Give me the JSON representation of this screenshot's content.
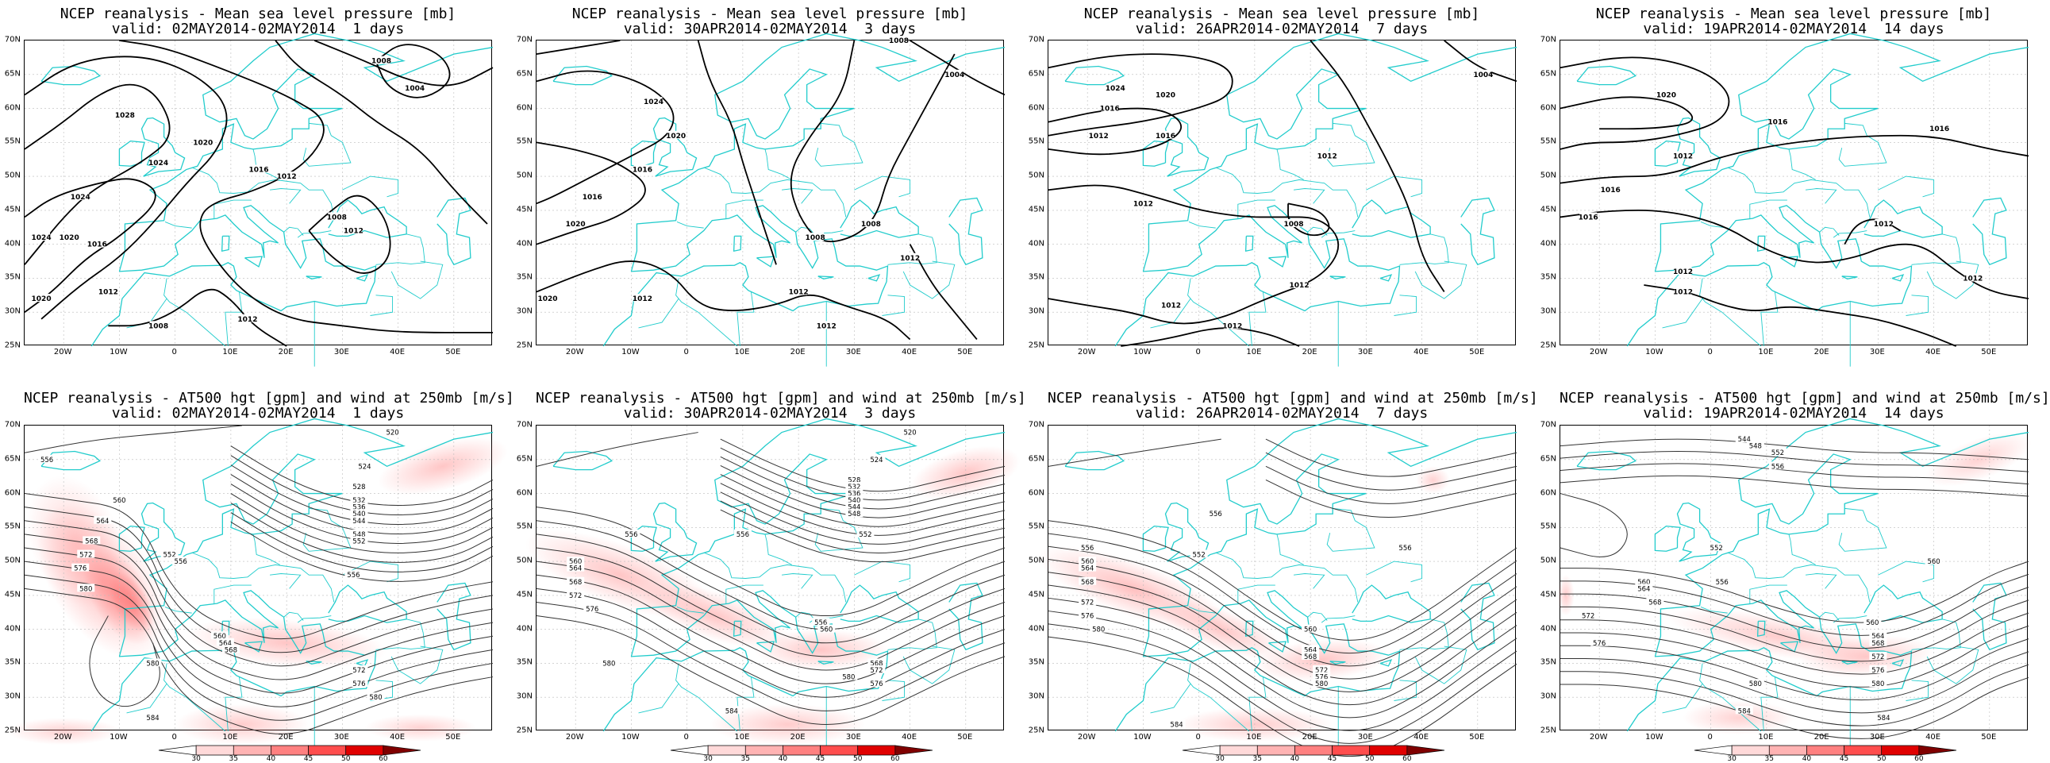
{
  "figure": {
    "mslp_panels": [
      {
        "line1": "NCEP reanalysis - Mean sea level pressure [mb]",
        "line2": "valid: 02MAY2014-02MAY2014  1 days"
      },
      {
        "line1": "NCEP reanalysis - Mean sea level pressure [mb]",
        "line2": "valid: 30APR2014-02MAY2014  3 days"
      },
      {
        "line1": "NCEP reanalysis - Mean sea level pressure [mb]",
        "line2": "valid: 26APR2014-02MAY2014  7 days"
      },
      {
        "line1": "NCEP reanalysis - Mean sea level pressure [mb]",
        "line2": "valid: 19APR2014-02MAY2014  14 days"
      }
    ],
    "z500_panels": [
      {
        "line1": "NCEP reanalysis - AT500 hgt [gpm] and wind at 250mb [m/s]",
        "line2": "valid: 02MAY2014-02MAY2014  1 days"
      },
      {
        "line1": "NCEP reanalysis - AT500 hgt [gpm] and wind at 250mb [m/s]",
        "line2": "valid: 30APR2014-02MAY2014  3 days"
      },
      {
        "line1": "NCEP reanalysis - AT500 hgt [gpm] and wind at 250mb [m/s]",
        "line2": "valid: 26APR2014-02MAY2014  7 days"
      },
      {
        "line1": "NCEP reanalysis - AT500 hgt [gpm] and wind at 250mb [m/s]",
        "line2": "valid: 19APR2014-02MAY2014  14 days"
      }
    ],
    "lat_labels": [
      "70N",
      "65N",
      "60N",
      "55N",
      "50N",
      "45N",
      "40N",
      "35N",
      "30N",
      "25N"
    ],
    "lon_labels": [
      "20W",
      "10W",
      "0",
      "10E",
      "20E",
      "30E",
      "40E",
      "50E"
    ],
    "colorbar": {
      "labels": [
        "30",
        "35",
        "40",
        "45",
        "50",
        "60"
      ],
      "colors": [
        "#ffffff",
        "#ffd9d9",
        "#ffb3b3",
        "#ff8080",
        "#ff4d4d",
        "#e00000",
        "#800000"
      ]
    },
    "colors": {
      "coast": "#22cccc",
      "contour": "#000000",
      "jet": "#ff8080"
    },
    "mslp_contours": [
      [
        {
          "label": "1024",
          "lon": -17,
          "lat": 47
        },
        {
          "label": "1024",
          "lon": -24,
          "lat": 41
        },
        {
          "label": "1020",
          "lon": -19,
          "lat": 41
        },
        {
          "label": "1020",
          "lon": -24,
          "lat": 32
        },
        {
          "label": "1016",
          "lon": -14,
          "lat": 40
        },
        {
          "label": "1012",
          "lon": -12,
          "lat": 33
        },
        {
          "label": "1008",
          "lon": -3,
          "lat": 28
        },
        {
          "label": "1012",
          "lon": 13,
          "lat": 29
        },
        {
          "label": "1012",
          "lon": 32,
          "lat": 42
        },
        {
          "label": "1012",
          "lon": 20,
          "lat": 50
        },
        {
          "label": "1016",
          "lon": 15,
          "lat": 51
        },
        {
          "label": "1020",
          "lon": 5,
          "lat": 55
        },
        {
          "label": "1028",
          "lon": -9,
          "lat": 59
        },
        {
          "label": "1024",
          "lon": -3,
          "lat": 52
        },
        {
          "label": "1008",
          "lon": 29,
          "lat": 44
        },
        {
          "label": "1008",
          "lon": 37,
          "lat": 67
        },
        {
          "label": "1004",
          "lon": 43,
          "lat": 63
        }
      ],
      [
        {
          "label": "1024",
          "lon": -6,
          "lat": 61
        },
        {
          "label": "1020",
          "lon": -2,
          "lat": 56
        },
        {
          "label": "1016",
          "lon": -8,
          "lat": 51
        },
        {
          "label": "1016",
          "lon": -17,
          "lat": 47
        },
        {
          "label": "1020",
          "lon": -20,
          "lat": 43
        },
        {
          "label": "1020",
          "lon": -25,
          "lat": 32
        },
        {
          "label": "1012",
          "lon": -8,
          "lat": 32
        },
        {
          "label": "1012",
          "lon": 20,
          "lat": 33
        },
        {
          "label": "1012",
          "lon": 25,
          "lat": 28
        },
        {
          "label": "1012",
          "lon": 40,
          "lat": 38
        },
        {
          "label": "1008",
          "lon": 23,
          "lat": 41
        },
        {
          "label": "1008",
          "lon": 33,
          "lat": 43
        },
        {
          "label": "1008",
          "lon": 38,
          "lat": 70
        },
        {
          "label": "1004",
          "lon": 48,
          "lat": 65
        }
      ],
      [
        {
          "label": "1024",
          "lon": -15,
          "lat": 63
        },
        {
          "label": "1020",
          "lon": -6,
          "lat": 62
        },
        {
          "label": "1016",
          "lon": -16,
          "lat": 60
        },
        {
          "label": "1012",
          "lon": -18,
          "lat": 56
        },
        {
          "label": "1016",
          "lon": -6,
          "lat": 56
        },
        {
          "label": "1012",
          "lon": 23,
          "lat": 53
        },
        {
          "label": "1012",
          "lon": -10,
          "lat": 46
        },
        {
          "label": "1008",
          "lon": 17,
          "lat": 43
        },
        {
          "label": "1012",
          "lon": 18,
          "lat": 34
        },
        {
          "label": "1012",
          "lon": -5,
          "lat": 31
        },
        {
          "label": "1012",
          "lon": 6,
          "lat": 28
        },
        {
          "label": "1004",
          "lon": 51,
          "lat": 65
        }
      ],
      [
        {
          "label": "1020",
          "lon": -8,
          "lat": 62
        },
        {
          "label": "1016",
          "lon": 12,
          "lat": 58
        },
        {
          "label": "1016",
          "lon": 41,
          "lat": 57
        },
        {
          "label": "1012",
          "lon": -5,
          "lat": 53
        },
        {
          "label": "1016",
          "lon": -18,
          "lat": 48
        },
        {
          "label": "1016",
          "lon": -22,
          "lat": 44
        },
        {
          "label": "1012",
          "lon": -5,
          "lat": 36
        },
        {
          "label": "1012",
          "lon": -5,
          "lat": 33
        },
        {
          "label": "1012",
          "lon": 31,
          "lat": 43
        },
        {
          "label": "1012",
          "lon": 47,
          "lat": 35
        }
      ]
    ],
    "z500_contours": [
      [
        {
          "label": "520",
          "lon": 39,
          "lat": 69
        },
        {
          "label": "524",
          "lon": 34,
          "lat": 64
        },
        {
          "label": "528",
          "lon": 33,
          "lat": 61
        },
        {
          "label": "532",
          "lon": 33,
          "lat": 59
        },
        {
          "label": "536",
          "lon": 33,
          "lat": 58
        },
        {
          "label": "540",
          "lon": 33,
          "lat": 57
        },
        {
          "label": "544",
          "lon": 33,
          "lat": 56
        },
        {
          "label": "548",
          "lon": 33,
          "lat": 54
        },
        {
          "label": "552",
          "lon": 33,
          "lat": 53
        },
        {
          "label": "556",
          "lon": -23,
          "lat": 65
        },
        {
          "label": "556",
          "lon": 32,
          "lat": 48
        },
        {
          "label": "552",
          "lon": -1,
          "lat": 51
        },
        {
          "label": "556",
          "lon": 1,
          "lat": 50
        },
        {
          "label": "560",
          "lon": -10,
          "lat": 59
        },
        {
          "label": "564",
          "lon": -13,
          "lat": 56
        },
        {
          "label": "568",
          "lon": -15,
          "lat": 53
        },
        {
          "label": "572",
          "lon": -16,
          "lat": 51
        },
        {
          "label": "576",
          "lon": -17,
          "lat": 49
        },
        {
          "label": "580",
          "lon": -16,
          "lat": 46
        },
        {
          "label": "560",
          "lon": 8,
          "lat": 39
        },
        {
          "label": "564",
          "lon": 9,
          "lat": 38
        },
        {
          "label": "568",
          "lon": 10,
          "lat": 37
        },
        {
          "label": "572",
          "lon": 33,
          "lat": 34
        },
        {
          "label": "576",
          "lon": 33,
          "lat": 32
        },
        {
          "label": "580",
          "lon": -4,
          "lat": 35
        },
        {
          "label": "580",
          "lon": 36,
          "lat": 30
        },
        {
          "label": "584",
          "lon": -4,
          "lat": 27
        }
      ],
      [
        {
          "label": "520",
          "lon": 40,
          "lat": 69
        },
        {
          "label": "524",
          "lon": 34,
          "lat": 65
        },
        {
          "label": "528",
          "lon": 30,
          "lat": 62
        },
        {
          "label": "532",
          "lon": 30,
          "lat": 61
        },
        {
          "label": "536",
          "lon": 30,
          "lat": 60
        },
        {
          "label": "540",
          "lon": 30,
          "lat": 59
        },
        {
          "label": "544",
          "lon": 30,
          "lat": 58
        },
        {
          "label": "548",
          "lon": 30,
          "lat": 57
        },
        {
          "label": "552",
          "lon": 32,
          "lat": 54
        },
        {
          "label": "556",
          "lon": -10,
          "lat": 54
        },
        {
          "label": "556",
          "lon": 10,
          "lat": 54
        },
        {
          "label": "560",
          "lon": -20,
          "lat": 50
        },
        {
          "label": "564",
          "lon": -20,
          "lat": 49
        },
        {
          "label": "568",
          "lon": -20,
          "lat": 47
        },
        {
          "label": "572",
          "lon": -20,
          "lat": 45
        },
        {
          "label": "576",
          "lon": -17,
          "lat": 43
        },
        {
          "label": "556",
          "lon": 24,
          "lat": 41
        },
        {
          "label": "560",
          "lon": 25,
          "lat": 40
        },
        {
          "label": "568",
          "lon": 34,
          "lat": 35
        },
        {
          "label": "572",
          "lon": 34,
          "lat": 34
        },
        {
          "label": "576",
          "lon": 34,
          "lat": 32
        },
        {
          "label": "580",
          "lon": -14,
          "lat": 35
        },
        {
          "label": "580",
          "lon": 29,
          "lat": 33
        },
        {
          "label": "584",
          "lon": 8,
          "lat": 28
        }
      ],
      [
        {
          "label": "556",
          "lon": 3,
          "lat": 57
        },
        {
          "label": "552",
          "lon": 0,
          "lat": 51
        },
        {
          "label": "556",
          "lon": 37,
          "lat": 52
        },
        {
          "label": "556",
          "lon": -20,
          "lat": 52
        },
        {
          "label": "560",
          "lon": -20,
          "lat": 50
        },
        {
          "label": "564",
          "lon": -20,
          "lat": 49
        },
        {
          "label": "568",
          "lon": -20,
          "lat": 47
        },
        {
          "label": "572",
          "lon": -20,
          "lat": 44
        },
        {
          "label": "576",
          "lon": -20,
          "lat": 42
        },
        {
          "label": "580",
          "lon": -18,
          "lat": 40
        },
        {
          "label": "560",
          "lon": 20,
          "lat": 40
        },
        {
          "label": "564",
          "lon": 20,
          "lat": 37
        },
        {
          "label": "568",
          "lon": 20,
          "lat": 36
        },
        {
          "label": "572",
          "lon": 22,
          "lat": 34
        },
        {
          "label": "576",
          "lon": 22,
          "lat": 33
        },
        {
          "label": "580",
          "lon": 22,
          "lat": 32
        },
        {
          "label": "584",
          "lon": -4,
          "lat": 26
        }
      ],
      [
        {
          "label": "544",
          "lon": 6,
          "lat": 68
        },
        {
          "label": "548",
          "lon": 8,
          "lat": 67
        },
        {
          "label": "552",
          "lon": 12,
          "lat": 66
        },
        {
          "label": "556",
          "lon": 12,
          "lat": 64
        },
        {
          "label": "552",
          "lon": 1,
          "lat": 52
        },
        {
          "label": "560",
          "lon": -12,
          "lat": 47
        },
        {
          "label": "564",
          "lon": -12,
          "lat": 46
        },
        {
          "label": "568",
          "lon": -10,
          "lat": 44
        },
        {
          "label": "572",
          "lon": -22,
          "lat": 42
        },
        {
          "label": "576",
          "lon": -20,
          "lat": 38
        },
        {
          "label": "556",
          "lon": 2,
          "lat": 47
        },
        {
          "label": "560",
          "lon": 40,
          "lat": 50
        },
        {
          "label": "560",
          "lon": 29,
          "lat": 41
        },
        {
          "label": "564",
          "lon": 30,
          "lat": 39
        },
        {
          "label": "568",
          "lon": 30,
          "lat": 38
        },
        {
          "label": "572",
          "lon": 30,
          "lat": 36
        },
        {
          "label": "576",
          "lon": 30,
          "lat": 34
        },
        {
          "label": "580",
          "lon": 8,
          "lat": 32
        },
        {
          "label": "580",
          "lon": 30,
          "lat": 32
        },
        {
          "label": "584",
          "lon": 6,
          "lat": 28
        },
        {
          "label": "584",
          "lon": 31,
          "lat": 27
        }
      ]
    ]
  }
}
